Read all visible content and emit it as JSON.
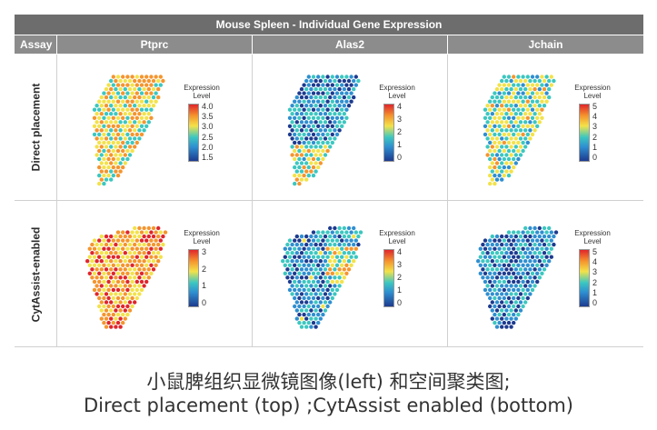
{
  "figure": {
    "title": "Mouse Spleen - Individual Gene Expression",
    "assay_header": "Assay",
    "genes": [
      "Ptprc",
      "Alas2",
      "Jchain"
    ],
    "rows": [
      "Direct placement",
      "CytAssist-enabled"
    ],
    "legend_title_line1": "Expression",
    "legend_title_line2": "Level"
  },
  "legends": [
    [
      "4.0",
      "3.5",
      "3.0",
      "2.5",
      "2.0",
      "1.5"
    ],
    [
      "4",
      "3",
      "2",
      "1",
      "0"
    ],
    [
      "5",
      "4",
      "3",
      "2",
      "1",
      "0"
    ],
    [
      "3",
      "2",
      "1",
      "0"
    ],
    [
      "4",
      "3",
      "2",
      "1",
      "0"
    ],
    [
      "5",
      "4",
      "3",
      "2",
      "1",
      "0"
    ]
  ],
  "palette": [
    "#1d3b8f",
    "#2f8fd0",
    "#3cc7c0",
    "#f3e24a",
    "#f5952e",
    "#e0262b"
  ],
  "caption": {
    "line1": "小鼠脾组织显微镜图像(left) 和空间聚类图;",
    "line2": "Direct placement (top) ;CytAssist  enabled (bottom)"
  }
}
